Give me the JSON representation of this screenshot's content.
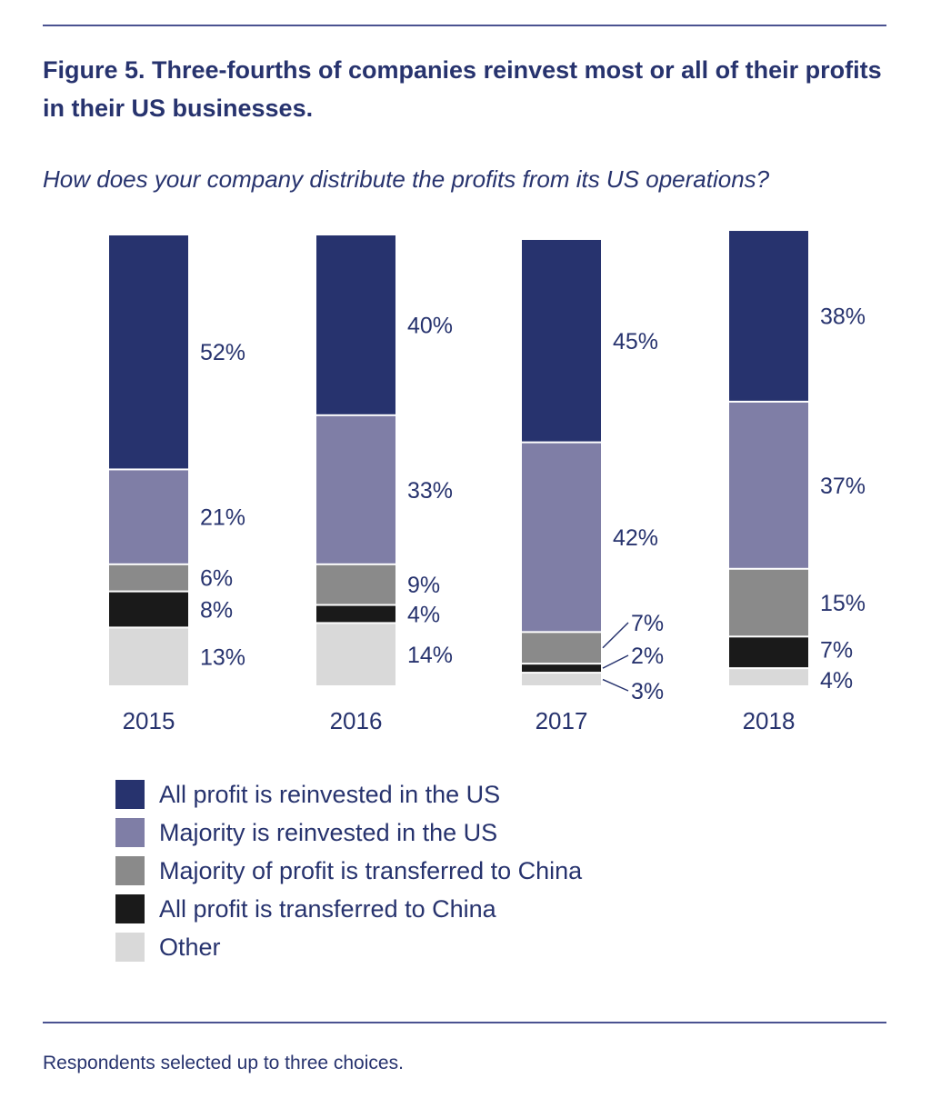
{
  "title": "Figure 5. Three-fourths of companies reinvest most or all of their profits in their US businesses.",
  "subtitle": "How does your company distribute the profits from its US operations?",
  "footnote": "Respondents selected up to three choices.",
  "chart_data": {
    "type": "bar",
    "stacked": true,
    "categories": [
      "2015",
      "2016",
      "2017",
      "2018"
    ],
    "series": [
      {
        "name": "All profit is reinvested in the US",
        "color": "#27336e",
        "values": [
          52,
          40,
          45,
          38
        ]
      },
      {
        "name": "Majority is reinvested in the US",
        "color": "#7f7ea6",
        "values": [
          21,
          33,
          42,
          37
        ]
      },
      {
        "name": "Majority of profit is transferred to China",
        "color": "#8a8a8a",
        "values": [
          6,
          9,
          7,
          15
        ]
      },
      {
        "name": "All profit is transferred to China",
        "color": "#1a1a1a",
        "values": [
          8,
          4,
          2,
          7
        ]
      },
      {
        "name": "Other",
        "color": "#d9d9d9",
        "values": [
          13,
          14,
          3,
          4
        ]
      }
    ],
    "value_suffix": "%",
    "legend_position": "bottom-left",
    "grid": false
  }
}
